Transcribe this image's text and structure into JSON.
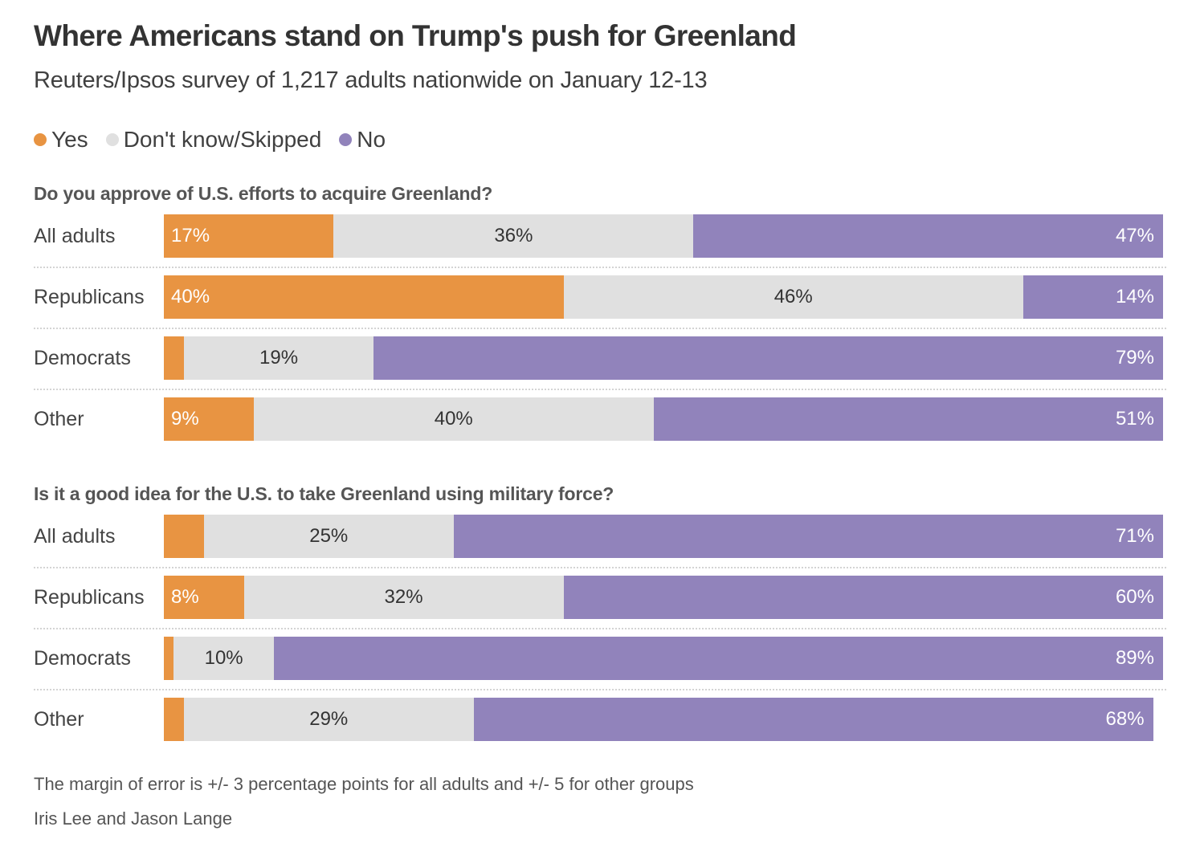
{
  "chart_data": {
    "type": "bar",
    "orientation": "horizontal",
    "stacked": true,
    "normalized_percent": true,
    "title": "Where Americans stand on Trump's push for Greenland",
    "subtitle": "Reuters/Ipsos survey of 1,217 adults nationwide on January 12-13",
    "legend": {
      "placement": "top-left",
      "entries": [
        {
          "name": "Yes",
          "color": "#e89442"
        },
        {
          "name": "Don't know/Skipped",
          "color": "#e0e0e0"
        },
        {
          "name": "No",
          "color": "#9183bb"
        }
      ]
    },
    "xlim": [
      0,
      100
    ],
    "grid": false,
    "panels": [
      {
        "question": "Do you approve of U.S. efforts to acquire Greenland?",
        "categories": [
          "All adults",
          "Republicans",
          "Democrats",
          "Other"
        ],
        "series": [
          {
            "name": "Yes",
            "values": [
              17,
              40,
              2,
              9
            ],
            "labels": [
              "17%",
              "40%",
              "",
              "9%"
            ]
          },
          {
            "name": "Don't know/Skipped",
            "values": [
              36,
              46,
              19,
              40
            ],
            "labels": [
              "36%",
              "46%",
              "19%",
              "40%"
            ]
          },
          {
            "name": "No",
            "values": [
              47,
              14,
              79,
              51
            ],
            "labels": [
              "47%",
              "14%",
              "79%",
              "51%"
            ]
          }
        ]
      },
      {
        "question": "Is it a good idea for the U.S. to take Greenland using military force?",
        "categories": [
          "All adults",
          "Republicans",
          "Democrats",
          "Other"
        ],
        "series": [
          {
            "name": "Yes",
            "values": [
              4,
              8,
              1,
              2
            ],
            "labels": [
              "",
              "8%",
              "",
              ""
            ]
          },
          {
            "name": "Don't know/Skipped",
            "values": [
              25,
              32,
              10,
              29
            ],
            "labels": [
              "25%",
              "32%",
              "10%",
              "29%"
            ]
          },
          {
            "name": "No",
            "values": [
              71,
              60,
              89,
              68
            ],
            "labels": [
              "71%",
              "60%",
              "89%",
              "68%"
            ]
          }
        ]
      }
    ],
    "note": "The margin of error is +/- 3 percentage points for all adults and +/- 5 for other groups",
    "byline": "Iris Lee and Jason Lange"
  },
  "colors": {
    "yes": "#e89442",
    "dont_know": "#e0e0e0",
    "no": "#9183bb",
    "label_on_dark": "#ffffff",
    "label_on_light": "#333333"
  }
}
